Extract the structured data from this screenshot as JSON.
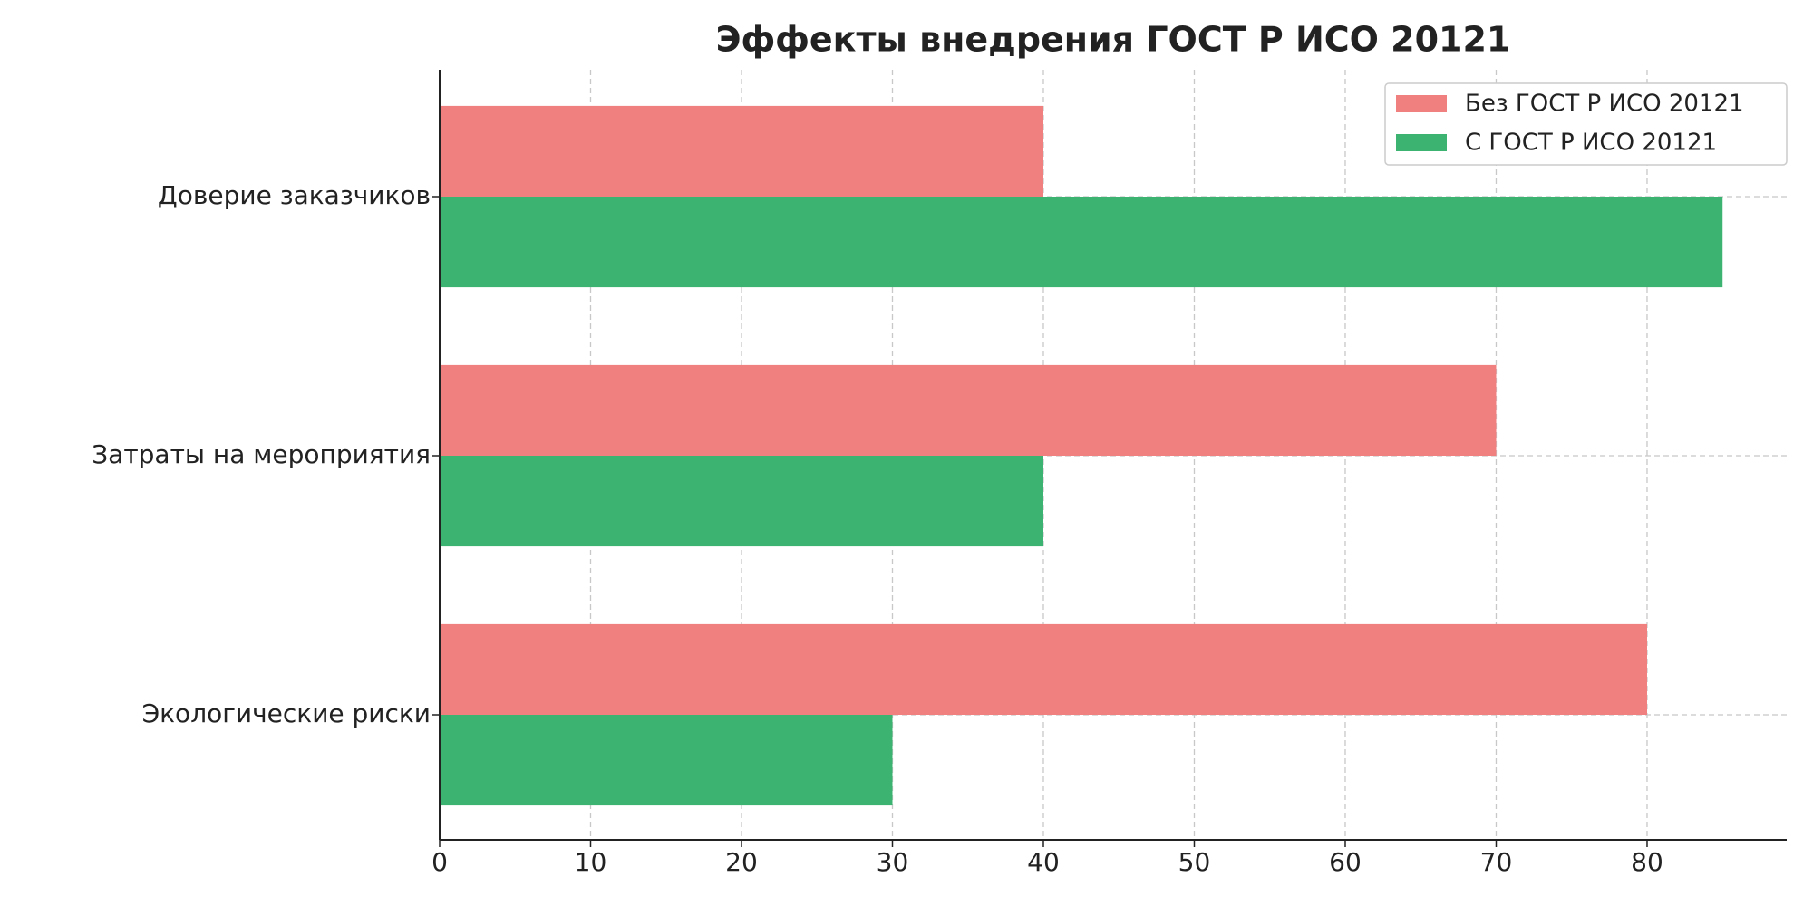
{
  "chart_data": {
    "type": "barh",
    "title": "Эффекты внедрения ГОСТ Р ИСО 20121",
    "categories": [
      "Доверие заказчиков",
      "Затраты на мероприятия",
      "Экологические риски"
    ],
    "series": [
      {
        "name": "Без ГОСТ Р ИСО 20121",
        "color": "#f08080",
        "values": [
          40,
          70,
          80
        ]
      },
      {
        "name": "С ГОСТ Р ИСО 20121",
        "color": "#3cb371",
        "values": [
          85,
          40,
          30
        ]
      }
    ],
    "xlim": [
      0,
      89.25
    ],
    "xticks": [
      0,
      10,
      20,
      30,
      40,
      50,
      60,
      70,
      80
    ],
    "grid": true,
    "legend": "upper right"
  }
}
